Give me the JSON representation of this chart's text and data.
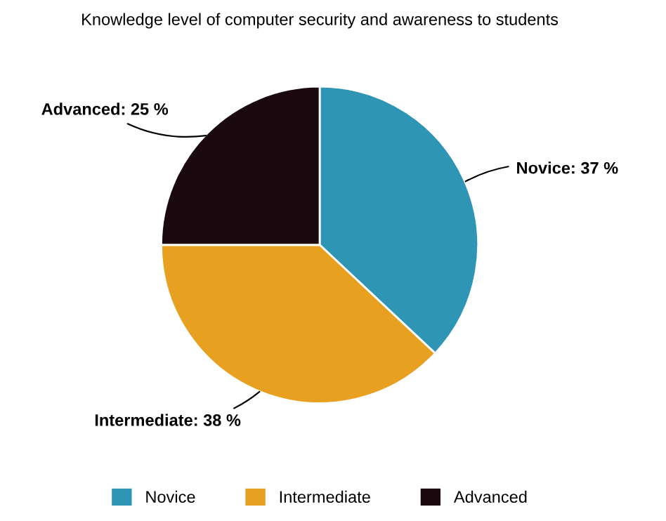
{
  "chart_data": {
    "type": "pie",
    "title": "Knowledge level of computer security and awareness to students",
    "categories": [
      "Novice",
      "Intermediate",
      "Advanced"
    ],
    "values": [
      37,
      38,
      25
    ],
    "colors": [
      "#2e95b5",
      "#e8a020",
      "#1a0a10"
    ],
    "value_labels": [
      "Novice: 37 %",
      "Intermediate: 38 %",
      "Advanced: 25 %"
    ],
    "legend": "bottom"
  }
}
